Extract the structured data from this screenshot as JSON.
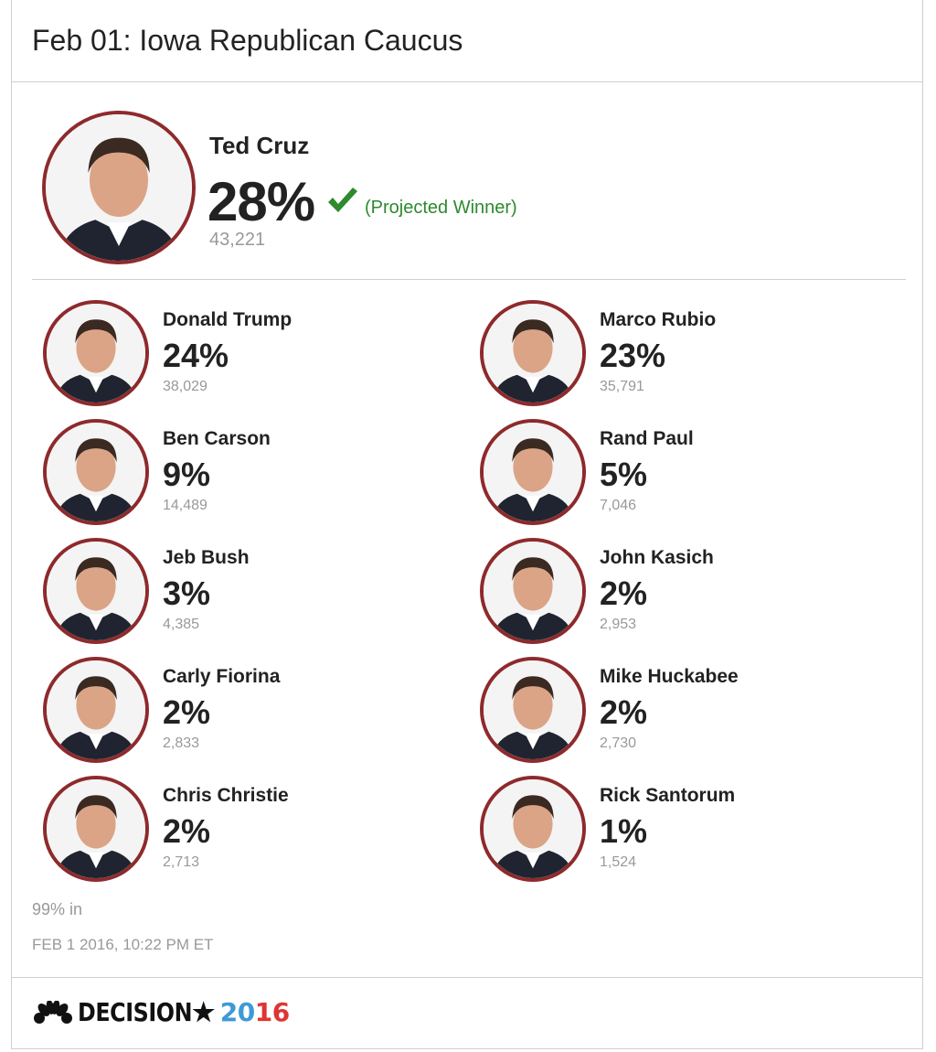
{
  "header": {
    "title": "Feb 01: Iowa Republican Caucus"
  },
  "winner": {
    "name": "Ted Cruz",
    "pct": "28%",
    "votes": "43,221",
    "status": "(Projected Winner)",
    "icon": "check-icon"
  },
  "candidates": [
    {
      "name": "Donald Trump",
      "pct": "24%",
      "votes": "38,029"
    },
    {
      "name": "Marco Rubio",
      "pct": "23%",
      "votes": "35,791"
    },
    {
      "name": "Ben Carson",
      "pct": "9%",
      "votes": "14,489"
    },
    {
      "name": "Rand Paul",
      "pct": "5%",
      "votes": "7,046"
    },
    {
      "name": "Jeb Bush",
      "pct": "3%",
      "votes": "4,385"
    },
    {
      "name": "John Kasich",
      "pct": "2%",
      "votes": "2,953"
    },
    {
      "name": "Carly Fiorina",
      "pct": "2%",
      "votes": "2,833"
    },
    {
      "name": "Mike Huckabee",
      "pct": "2%",
      "votes": "2,730"
    },
    {
      "name": "Chris Christie",
      "pct": "2%",
      "votes": "2,713"
    },
    {
      "name": "Rick Santorum",
      "pct": "1%",
      "votes": "1,524"
    }
  ],
  "footer": {
    "reporting": "99% in",
    "timestamp": "FEB 1 2016, 10:22 PM ET",
    "logo_word": "DECISION",
    "logo_year_a": "20",
    "logo_year_b": "16"
  },
  "colors": {
    "ring": "#8e2a2c",
    "win_green": "#2d8a2d",
    "year_blue": "#3d9ad6",
    "year_red": "#e03434"
  }
}
